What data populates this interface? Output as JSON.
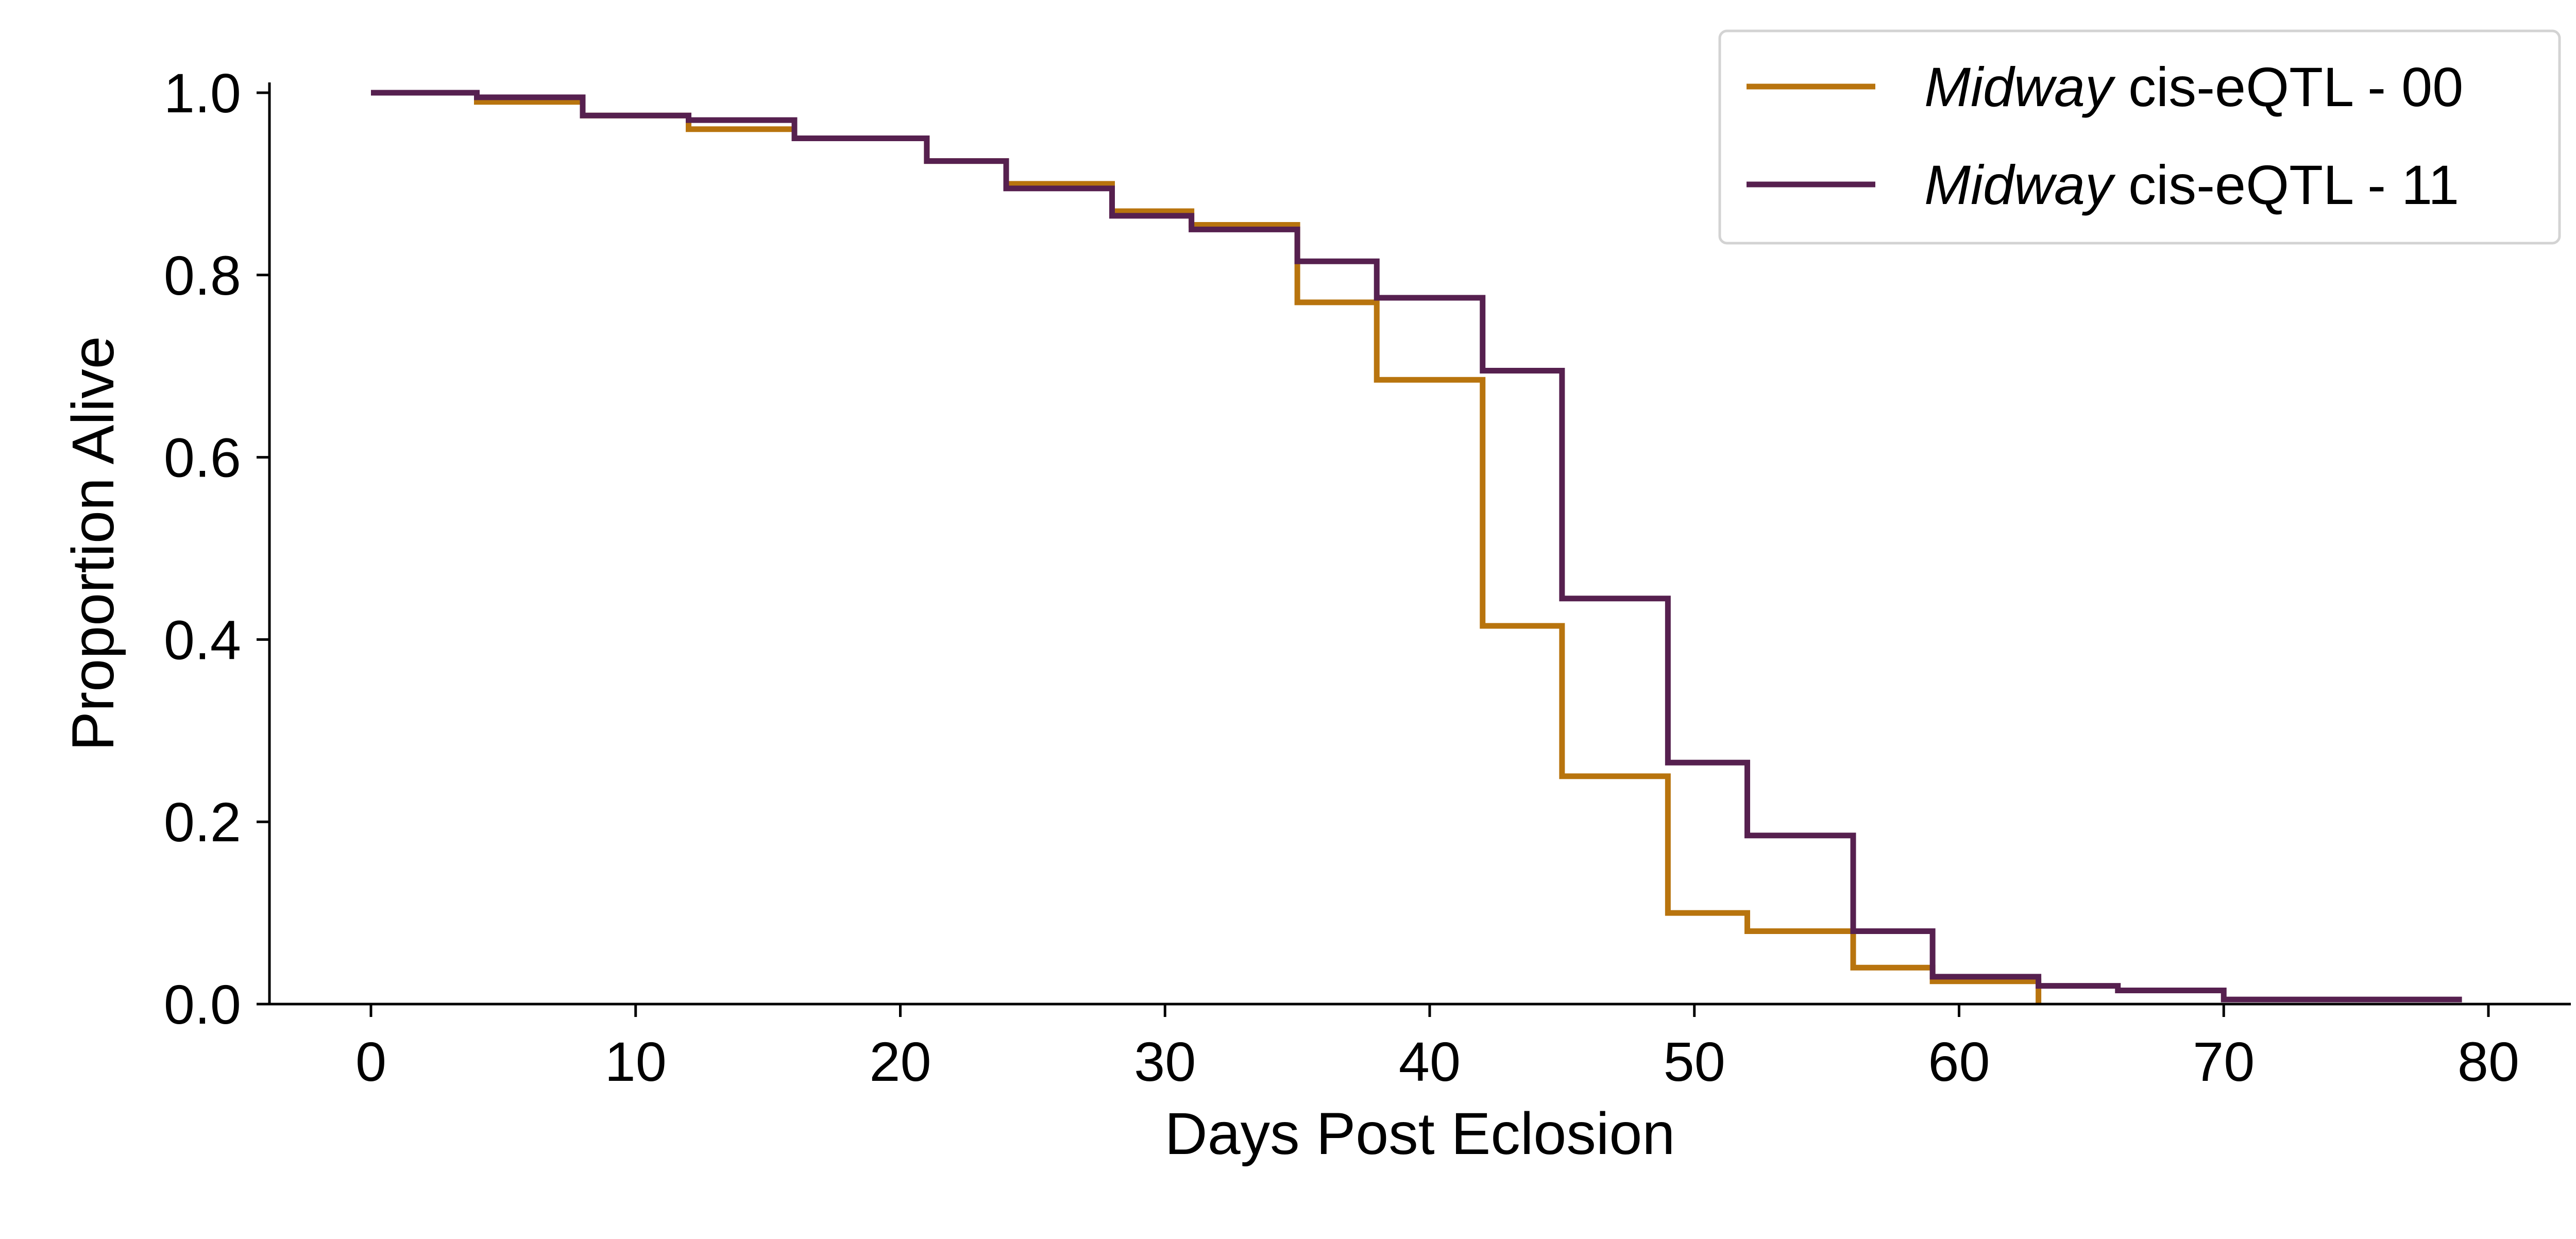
{
  "chart_data": {
    "type": "line",
    "step": "post",
    "title": "",
    "xlabel": "Days Post Eclosion",
    "ylabel": "Proportion Alive",
    "xlim": [
      -4,
      83
    ],
    "ylim": [
      0,
      1.01
    ],
    "xticks": [
      0,
      10,
      20,
      30,
      40,
      50,
      60,
      70,
      80
    ],
    "xtick_labels": [
      "0",
      "10",
      "20",
      "30",
      "40",
      "50",
      "60",
      "70",
      "80"
    ],
    "yticks": [
      0.0,
      0.2,
      0.4,
      0.6,
      0.8,
      1.0
    ],
    "ytick_labels": [
      "0.0",
      "0.2",
      "0.4",
      "0.6",
      "0.8",
      "1.0"
    ],
    "grid": false,
    "legend_position": "top-right",
    "series": [
      {
        "name": "Midway cis-eQTL - 00",
        "name_italic": "Midway",
        "name_rest": "cis-eQTL - 00",
        "color": "#b8740e",
        "x": [
          0,
          4,
          8,
          12,
          16,
          21,
          24,
          28,
          31,
          35,
          38,
          42,
          45,
          49,
          52,
          56,
          59,
          63
        ],
        "y": [
          1.0,
          0.99,
          0.975,
          0.96,
          0.95,
          0.925,
          0.9,
          0.87,
          0.855,
          0.77,
          0.685,
          0.415,
          0.25,
          0.1,
          0.08,
          0.04,
          0.025,
          0.0
        ]
      },
      {
        "name": "Midway cis-eQTL - 11",
        "name_italic": "Midway",
        "name_rest": "cis-eQTL - 11",
        "color": "#56204f",
        "x": [
          0,
          4,
          8,
          12,
          16,
          21,
          24,
          28,
          31,
          35,
          38,
          42,
          45,
          49,
          52,
          56,
          59,
          63,
          66,
          70,
          79
        ],
        "y": [
          1.0,
          0.995,
          0.975,
          0.97,
          0.95,
          0.925,
          0.895,
          0.865,
          0.85,
          0.815,
          0.775,
          0.695,
          0.445,
          0.265,
          0.185,
          0.08,
          0.03,
          0.02,
          0.015,
          0.005,
          0.005
        ]
      }
    ]
  }
}
